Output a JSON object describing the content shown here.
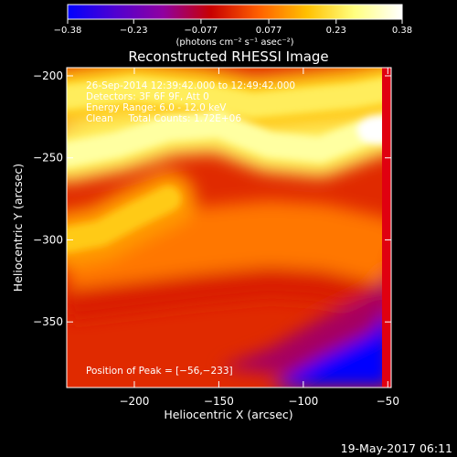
{
  "chart_data": {
    "type": "heatmap",
    "title": "Reconstructed RHESSI Image",
    "xlabel": "Heliocentric X (arcsec)",
    "ylabel": "Heliocentric Y (arcsec)",
    "xlim": [
      -240,
      -48
    ],
    "ylim": [
      -390,
      -195
    ],
    "x_ticks": [
      -200,
      -150,
      -100,
      -50
    ],
    "x_tick_labels": [
      "−200",
      "−150",
      "−100",
      "−50"
    ],
    "y_ticks": [
      -200,
      -250,
      -300,
      -350
    ],
    "y_tick_labels": [
      "−200",
      "−250",
      "−300",
      "−350"
    ],
    "colorbar": {
      "min": -0.38,
      "max": 0.38,
      "ticks": [
        -0.38,
        -0.23,
        -0.077,
        0.077,
        0.23,
        0.38
      ],
      "tick_labels": [
        "−0.38",
        "−0.23",
        "−0.077",
        "0.077",
        "0.23",
        "0.38"
      ],
      "units_label": "(photons cm⁻² s⁻¹ asec⁻²)",
      "colormap": [
        "#0000ff",
        "#5000d0",
        "#9000a0",
        "#c80000",
        "#ff6000",
        "#ffc000",
        "#ffff80",
        "#ffffff"
      ]
    },
    "annotations": [
      "26-Sep-2014 12:39:42.000 to 12:49:42.000",
      "Detectors: 3F 6F 9F, Att 0",
      "Energy Range: 6.0 - 12.0 keV",
      "Clean     Total Counts: 1.72E+06"
    ],
    "peak_label": "Position of Peak = [−56,−233]",
    "peak": [
      -56,
      -233
    ],
    "emission_ridges": [
      {
        "x": [
          -240,
          -210,
          -180,
          -150,
          -120,
          -90,
          -60,
          -48
        ],
        "y": [
          -248,
          -242,
          -232,
          -230,
          -242,
          -245,
          -233,
          -230
        ],
        "level": 0.3
      },
      {
        "x": [
          -240,
          -200,
          -160,
          -130,
          -100,
          -70,
          -48
        ],
        "y": [
          -213,
          -208,
          -212,
          -218,
          -215,
          -212,
          -208
        ],
        "level": 0.24
      },
      {
        "x": [
          -240,
          -220,
          -200,
          -180
        ],
        "y": [
          -300,
          -296,
          -285,
          -275
        ],
        "level": 0.18
      }
    ],
    "dark_lane": {
      "x": [
        -240,
        -200,
        -160,
        -120,
        -90,
        -60,
        -48
      ],
      "y": [
        -340,
        -335,
        -330,
        -326,
        -328,
        -335,
        -340
      ]
    },
    "negative_region": {
      "x": [
        -150,
        -120,
        -90,
        -60,
        -48
      ],
      "y": [
        -390,
        -378,
        -360,
        -345,
        -330
      ],
      "level": -0.38
    }
  },
  "footer": {
    "date": "19-May-2017 06:11"
  }
}
